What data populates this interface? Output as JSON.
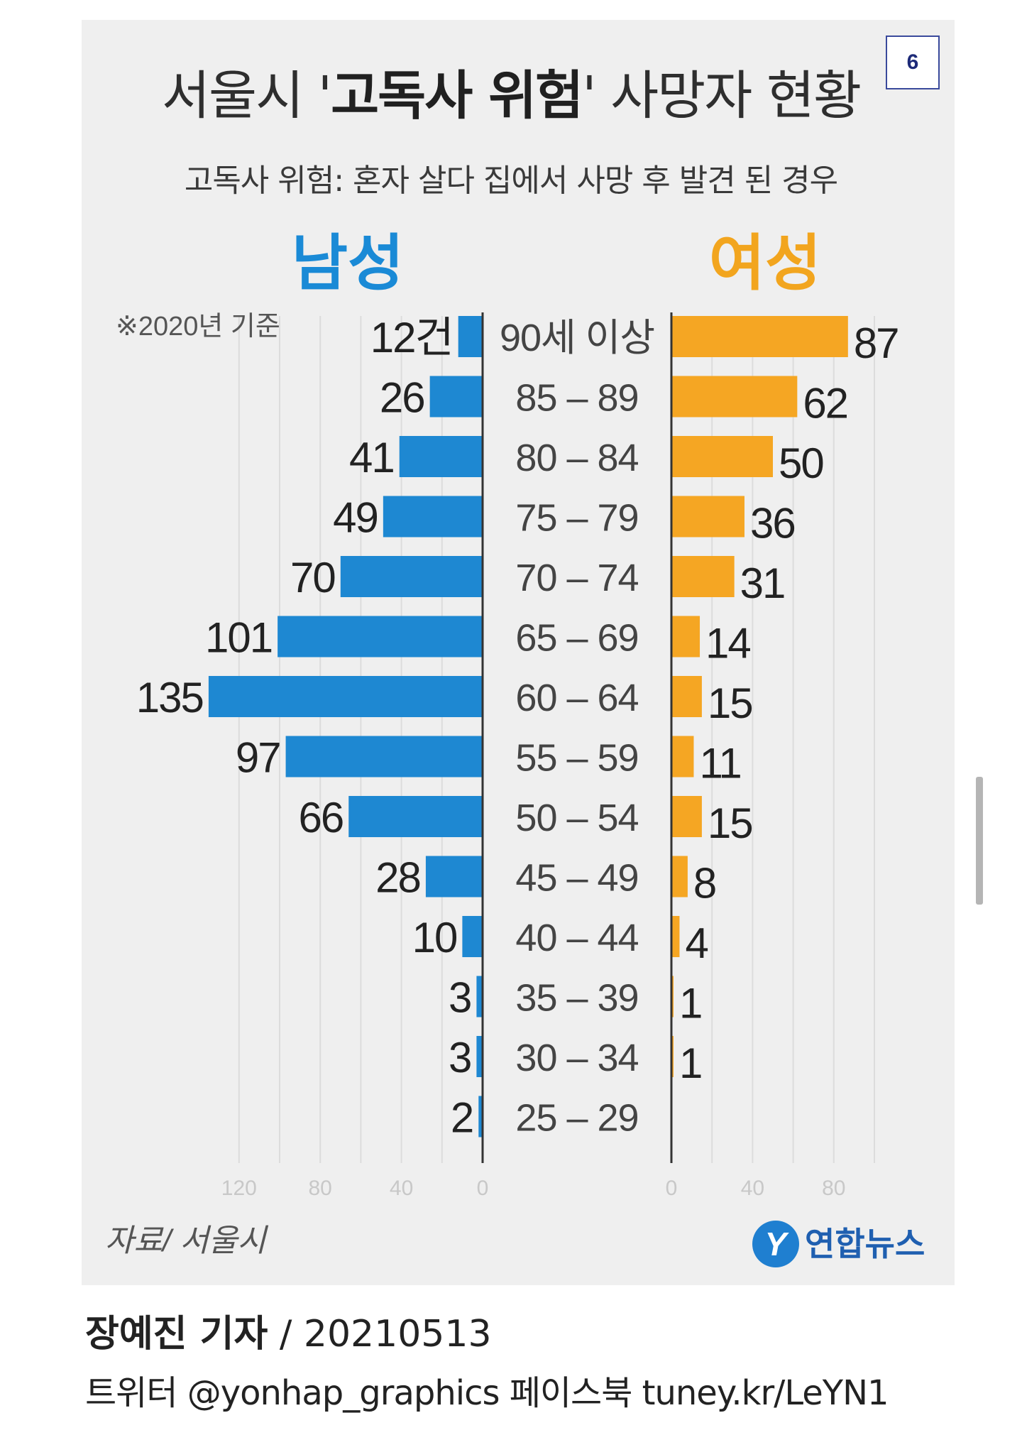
{
  "page_badge": "6",
  "title": {
    "prefix": "서울시 '",
    "emphasis": "고독사 위험",
    "suffix": "' 사망자 현황"
  },
  "subtitle": "고독사 위험: 혼자 살다 집에서 사망 후 발견 된 경우",
  "note": "※2020년 기준",
  "source": "자료/ 서울시",
  "logo_text": "연합뉴스",
  "logo_mark": "Y",
  "footer": {
    "reporter": "장예진 기자",
    "date": " / 20210513",
    "social": "트위터 @yonhap_graphics  페이스북 tuney.kr/LeYN1"
  },
  "colors": {
    "male": "#1e88d2",
    "female": "#f5a623",
    "panel": "#efefef",
    "male_heading": "#1a8ad6",
    "female_heading": "#f2a51e"
  },
  "chart_data": {
    "type": "bar",
    "orientation": "horizontal-back-to-back",
    "categories": [
      "90세 이상",
      "85 – 89",
      "80 – 84",
      "75 – 79",
      "70 – 74",
      "65 – 69",
      "60 – 64",
      "55 – 59",
      "50 – 54",
      "45 – 49",
      "40 – 44",
      "35 – 39",
      "30 – 34",
      "25 – 29"
    ],
    "series": [
      {
        "name": "남성",
        "values": [
          12,
          26,
          41,
          49,
          70,
          101,
          135,
          97,
          66,
          28,
          10,
          3,
          3,
          2
        ],
        "first_suffix": "건"
      },
      {
        "name": "여성",
        "values": [
          87,
          62,
          50,
          36,
          31,
          14,
          15,
          11,
          15,
          8,
          4,
          1,
          1,
          0
        ]
      }
    ],
    "male_ticks": [
      "120",
      "80",
      "40",
      "0"
    ],
    "female_ticks": [
      "0",
      "40",
      "80"
    ],
    "xlim": [
      0,
      135
    ],
    "grid": true
  }
}
